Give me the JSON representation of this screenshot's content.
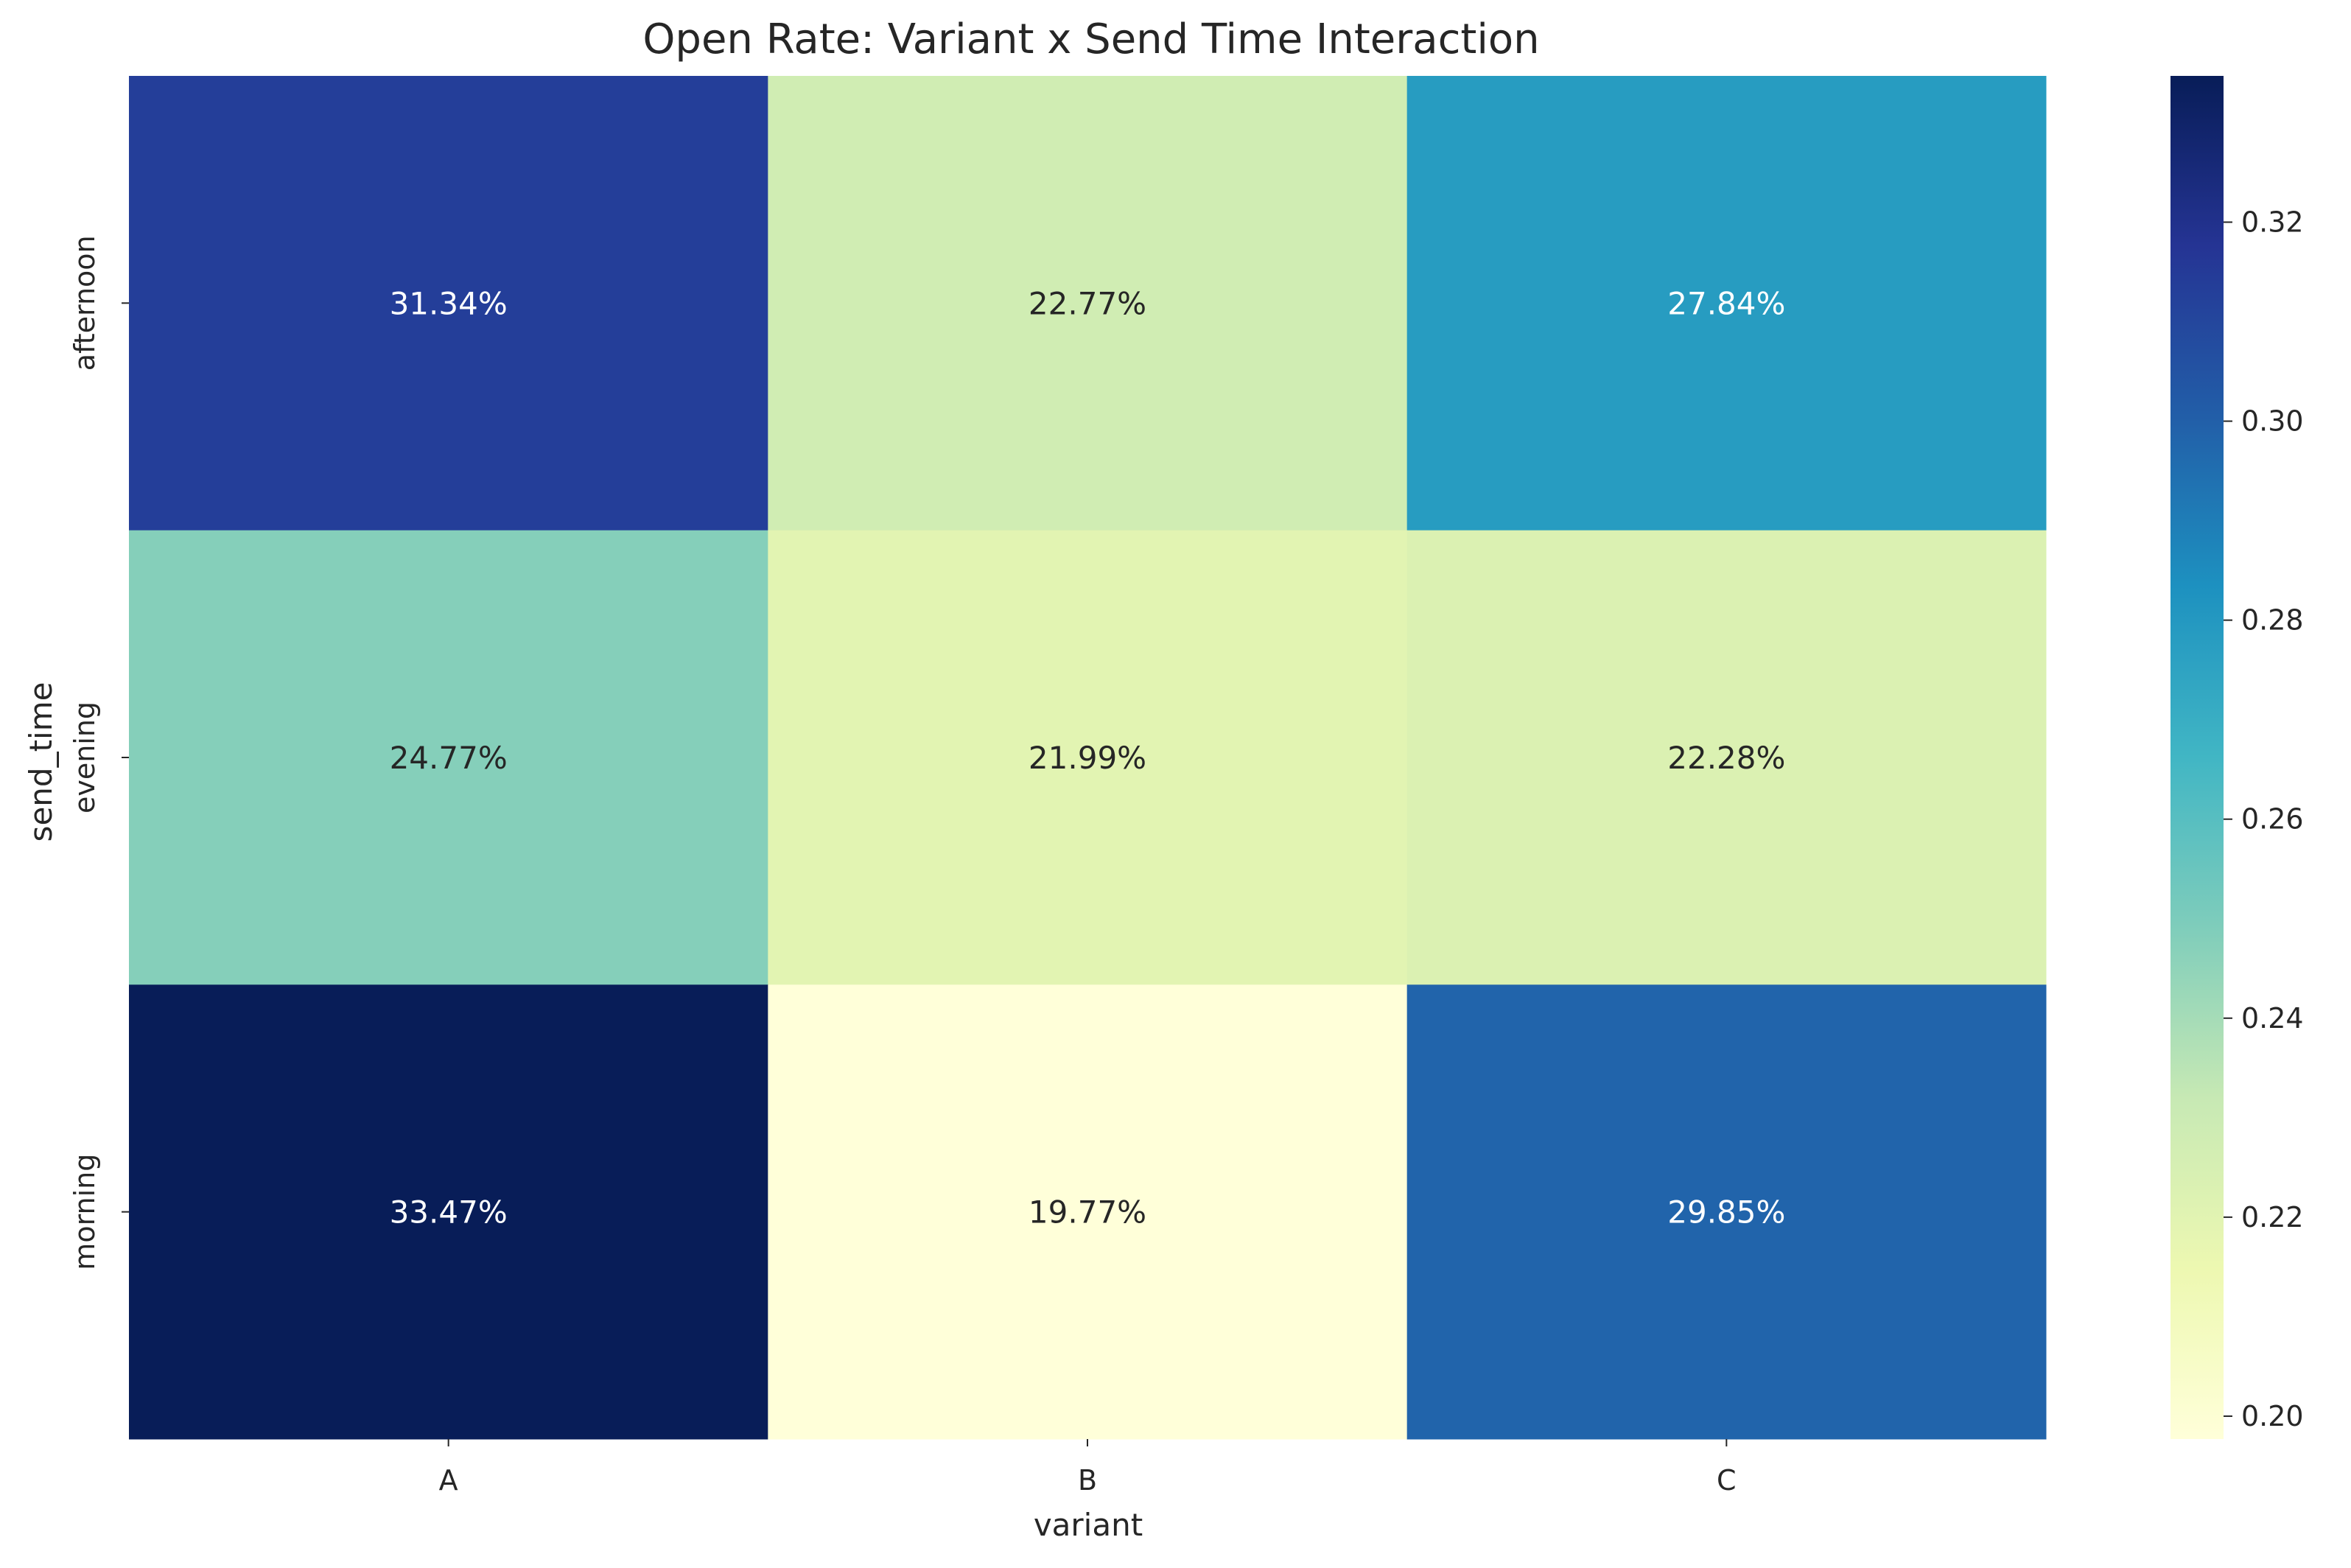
{
  "chart_data": {
    "type": "heatmap",
    "title": "Open Rate: Variant x Send Time Interaction",
    "xlabel": "variant",
    "ylabel": "send_time",
    "x_categories": [
      "A",
      "B",
      "C"
    ],
    "y_categories": [
      "afternoon",
      "evening",
      "morning"
    ],
    "values": [
      [
        0.3134,
        0.2277,
        0.2784
      ],
      [
        0.2477,
        0.2199,
        0.2228
      ],
      [
        0.3347,
        0.1977,
        0.2985
      ]
    ],
    "cell_labels": [
      [
        "31.34%",
        "22.77%",
        "27.84%"
      ],
      [
        "24.77%",
        "21.99%",
        "22.28%"
      ],
      [
        "33.47%",
        "19.77%",
        "29.85%"
      ]
    ],
    "colormap": "YlGnBu",
    "colorbar": {
      "range": [
        0.1977,
        0.3347
      ],
      "ticks": [
        0.2,
        0.22,
        0.24,
        0.26,
        0.28,
        0.3,
        0.32
      ],
      "tick_labels": [
        "0.20",
        "0.22",
        "0.24",
        "0.26",
        "0.28",
        "0.30",
        "0.32"
      ]
    },
    "grid": false,
    "legend": "colorbar-right"
  }
}
